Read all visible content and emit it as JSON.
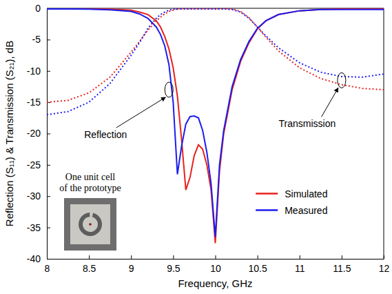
{
  "chart_data": {
    "type": "line",
    "x_label": "Frequency, GHz",
    "y_label": "Reflection (S₁₁) & Transmission (S₂₁), dB",
    "x": [
      8,
      8.25,
      8.5,
      8.75,
      9,
      9.1,
      9.2,
      9.3,
      9.35,
      9.4,
      9.45,
      9.5,
      9.55,
      9.6,
      9.65,
      9.7,
      9.75,
      9.8,
      9.85,
      9.9,
      9.95,
      10,
      10.05,
      10.1,
      10.2,
      10.3,
      10.4,
      10.5,
      10.6,
      10.75,
      11,
      11.25,
      11.5,
      11.75,
      12
    ],
    "series": [
      {
        "name": "Simulated",
        "color": "#e8211b",
        "line_style": "solid",
        "values": [
          -0.1,
          -0.1,
          -0.1,
          -0.15,
          -0.3,
          -0.6,
          -1.0,
          -2.0,
          -3.0,
          -4.5,
          -6.5,
          -9.5,
          -14,
          -21,
          -29,
          -27,
          -23.5,
          -21.8,
          -22.5,
          -25,
          -29,
          -37.5,
          -26,
          -20,
          -13,
          -8.5,
          -5.5,
          -3.3,
          -2.0,
          -1.0,
          -0.4,
          -0.2,
          -0.1,
          -0.1,
          -0.1
        ]
      },
      {
        "name": "Measured",
        "color": "#1c1cf0",
        "line_style": "solid",
        "values": [
          -0.1,
          -0.1,
          -0.15,
          -0.25,
          -0.5,
          -0.9,
          -1.6,
          -3.0,
          -4.2,
          -6.0,
          -9.0,
          -15,
          -26.5,
          -22,
          -18.5,
          -17.3,
          -17.2,
          -17.5,
          -19.5,
          -23,
          -28,
          -36.5,
          -25,
          -19.5,
          -12.5,
          -8.2,
          -5.3,
          -3.2,
          -2.0,
          -1.0,
          -0.4,
          -0.2,
          -0.2,
          -0.2,
          -0.2
        ]
      },
      {
        "name": "Simulated",
        "color": "#e8211b",
        "line_style": "dotted",
        "values": [
          -15,
          -14.7,
          -13.5,
          -11,
          -7,
          -5.3,
          -3.5,
          -2.0,
          -1.4,
          -0.9,
          -0.5,
          -0.3,
          -0.1,
          -0.05,
          -0.05,
          -0.05,
          -0.05,
          -0.05,
          -0.05,
          -0.05,
          -0.05,
          -0.05,
          -0.05,
          -0.05,
          -0.1,
          -0.5,
          -1.5,
          -3.0,
          -4.6,
          -6.8,
          -9.5,
          -11.2,
          -12.2,
          -12.8,
          -13
        ]
      },
      {
        "name": "Measured",
        "color": "#1c1cf0",
        "line_style": "dotted",
        "values": [
          -17,
          -16.5,
          -15,
          -12,
          -7.5,
          -5.5,
          -3.2,
          -1.6,
          -1.0,
          -0.6,
          -0.3,
          -0.15,
          -0.1,
          -0.1,
          -0.1,
          -0.1,
          -0.1,
          -0.1,
          -0.1,
          -0.1,
          -0.1,
          -0.1,
          -0.1,
          -0.1,
          -0.2,
          -0.6,
          -1.6,
          -3.0,
          -4.4,
          -6.3,
          -8.7,
          -10.2,
          -10.9,
          -11,
          -10.5
        ]
      }
    ],
    "xlim": [
      8,
      12
    ],
    "xticks": [
      8,
      8.5,
      9,
      9.5,
      10,
      10.5,
      11,
      11.5,
      12
    ],
    "ylim": [
      -40,
      0
    ],
    "yticks": [
      -40,
      -35,
      -30,
      -25,
      -20,
      -15,
      -10,
      -5,
      0
    ],
    "grid": false,
    "legend": "lower right",
    "annotations": [
      {
        "text": "Reflection",
        "x": 9.45,
        "y": -13
      },
      {
        "text": "Transmission",
        "x": 11.5,
        "y": -11.5
      }
    ],
    "inset_caption": [
      "One unit cell",
      "of the prototype"
    ]
  }
}
